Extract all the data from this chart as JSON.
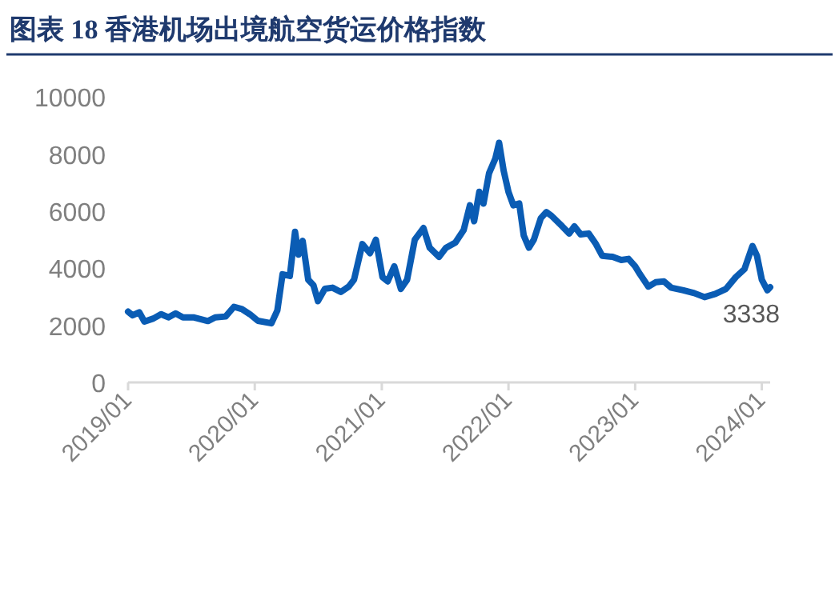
{
  "chart_data": {
    "type": "line",
    "title": "图表 18  香港机场出境航空货运价格指数",
    "x": [
      "2019-01-01",
      "2019-01-14",
      "2019-02-02",
      "2019-02-17",
      "2019-03-15",
      "2019-04-06",
      "2019-04-27",
      "2019-05-18",
      "2019-06-08",
      "2019-07-08",
      "2019-08-19",
      "2019-09-09",
      "2019-10-09",
      "2019-11-02",
      "2019-11-25",
      "2019-12-18",
      "2020-01-10",
      "2020-02-18",
      "2020-03-06",
      "2020-03-21",
      "2020-04-11",
      "2020-04-26",
      "2020-05-06",
      "2020-05-18",
      "2020-06-03",
      "2020-06-18",
      "2020-07-01",
      "2020-07-21",
      "2020-08-12",
      "2020-09-05",
      "2020-09-28",
      "2020-10-13",
      "2020-11-06",
      "2020-11-28",
      "2020-12-15",
      "2021-01-03",
      "2021-01-18",
      "2021-02-06",
      "2021-02-25",
      "2021-03-15",
      "2021-04-06",
      "2021-05-01",
      "2021-05-19",
      "2021-06-15",
      "2021-07-05",
      "2021-08-01",
      "2021-08-25",
      "2021-09-12",
      "2021-09-24",
      "2021-10-09",
      "2021-10-21",
      "2021-11-06",
      "2021-11-24",
      "2021-12-05",
      "2021-12-18",
      "2022-01-01",
      "2022-01-15",
      "2022-02-01",
      "2022-02-14",
      "2022-03-01",
      "2022-03-15",
      "2022-04-04",
      "2022-04-20",
      "2022-05-05",
      "2022-06-05",
      "2022-06-25",
      "2022-07-10",
      "2022-07-28",
      "2022-08-20",
      "2022-09-10",
      "2022-09-28",
      "2022-10-28",
      "2022-11-22",
      "2022-12-13",
      "2023-01-01",
      "2023-01-15",
      "2023-02-08",
      "2023-03-01",
      "2023-03-25",
      "2023-04-15",
      "2023-05-20",
      "2023-06-20",
      "2023-07-20",
      "2023-08-20",
      "2023-09-20",
      "2023-10-18",
      "2023-11-12",
      "2023-12-05",
      "2023-12-18",
      "2024-01-01",
      "2024-01-17",
      "2024-01-25"
    ],
    "series": [
      {
        "color": "#0a5cb4",
        "values": [
          2480,
          2350,
          2460,
          2130,
          2240,
          2390,
          2280,
          2420,
          2280,
          2280,
          2150,
          2280,
          2310,
          2650,
          2570,
          2390,
          2160,
          2070,
          2520,
          3790,
          3730,
          5280,
          4480,
          4960,
          3600,
          3410,
          2850,
          3280,
          3320,
          3170,
          3360,
          3600,
          4850,
          4530,
          5000,
          3690,
          3540,
          4070,
          3280,
          3600,
          5000,
          5410,
          4720,
          4400,
          4720,
          4900,
          5340,
          6210,
          5650,
          6680,
          6270,
          7330,
          7840,
          8400,
          7430,
          6680,
          6210,
          6270,
          5150,
          4720,
          5000,
          5750,
          5970,
          5840,
          5470,
          5220,
          5470,
          5190,
          5220,
          4850,
          4440,
          4400,
          4290,
          4330,
          4070,
          3790,
          3360,
          3510,
          3540,
          3320,
          3230,
          3130,
          2990,
          3100,
          3280,
          3690,
          3970,
          4780,
          4440,
          3600,
          3230,
          3338
        ]
      }
    ],
    "annotations": [
      {
        "text": "3338",
        "x": "2024-01-25",
        "y": 3338
      }
    ],
    "xlim": [
      "2019-01-01",
      "2024-01-25"
    ],
    "xticks": [
      {
        "value": "2019-01",
        "label": "2019/01"
      },
      {
        "value": "2020-01",
        "label": "2020/01"
      },
      {
        "value": "2021-01",
        "label": "2021/01"
      },
      {
        "value": "2022-01",
        "label": "2022/01"
      },
      {
        "value": "2023-01",
        "label": "2023/01"
      },
      {
        "value": "2024-01",
        "label": "2024/01"
      }
    ],
    "ylim": [
      0,
      10000
    ],
    "yticks": [
      0,
      2000,
      4000,
      6000,
      8000,
      10000
    ],
    "grid": false
  }
}
